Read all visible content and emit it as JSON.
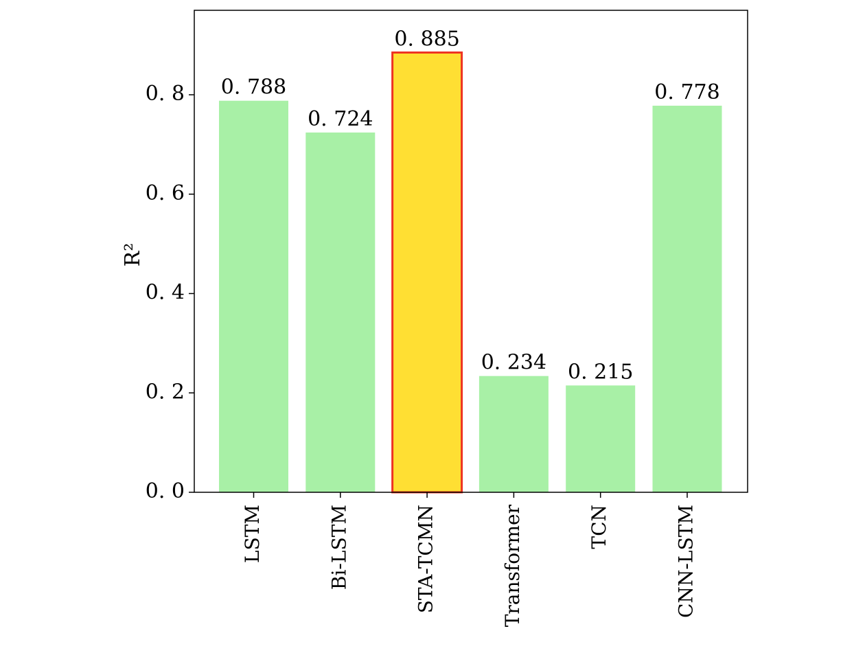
{
  "chart_data": {
    "type": "bar",
    "categories": [
      "LSTM",
      "Bi-LSTM",
      "STA-TCMN",
      "Transformer",
      "TCN",
      "CNN-LSTM"
    ],
    "values": [
      0.788,
      0.724,
      0.885,
      0.234,
      0.215,
      0.778
    ],
    "value_labels": [
      "0. 788",
      "0. 724",
      "0. 885",
      "0. 234",
      "0. 215",
      "0. 778"
    ],
    "highlight_index": 2,
    "ylabel": "R²",
    "xlabel": "",
    "title": "",
    "ylim": [
      0,
      0.97
    ],
    "yticks": [
      0,
      0.2,
      0.4,
      0.6,
      0.8
    ],
    "ytick_labels": [
      "0. 0",
      "0. 2",
      "0. 4",
      "0. 6",
      "0. 8"
    ],
    "grid": false,
    "legend": "none",
    "colors": {
      "bar": "#a8f0a6",
      "highlight_fill": "#ffdf33",
      "highlight_edge": "#ee3322",
      "axis": "#000000"
    }
  }
}
